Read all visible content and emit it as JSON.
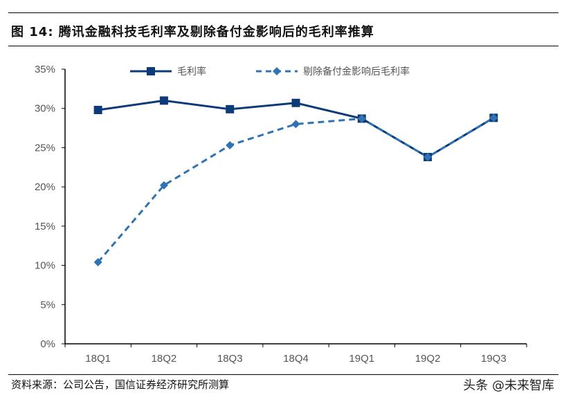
{
  "figure": {
    "title": "图 14: 腾讯金融科技毛利率及剔除备付金影响后的毛利率推算",
    "source": "资料来源：公司公告，国信证券经济研究所测算",
    "watermark": "头条 @未来智库"
  },
  "colors": {
    "series1": "#0D3A78",
    "series2": "#2E74B5",
    "axis": "#000000",
    "tick_text": "#555555"
  },
  "chart_data": {
    "type": "line",
    "title": "腾讯金融科技毛利率及剔除备付金影响后的毛利率推算",
    "xlabel": "",
    "ylabel": "",
    "categories": [
      "18Q1",
      "18Q2",
      "18Q3",
      "18Q4",
      "19Q1",
      "19Q2",
      "19Q3"
    ],
    "series": [
      {
        "name": "毛利率",
        "style": "solid",
        "marker": "square",
        "values": [
          29.8,
          31.0,
          29.9,
          30.7,
          28.7,
          23.8,
          28.8
        ]
      },
      {
        "name": "剔除备付金影响后毛利率",
        "style": "dashed",
        "marker": "diamond",
        "values": [
          10.4,
          20.2,
          25.3,
          28.0,
          28.7,
          23.8,
          28.8
        ]
      }
    ],
    "ylim": [
      0,
      35
    ],
    "yticks": [
      "0%",
      "5%",
      "10%",
      "15%",
      "20%",
      "25%",
      "30%",
      "35%"
    ],
    "grid": false,
    "legend_position": "top"
  }
}
